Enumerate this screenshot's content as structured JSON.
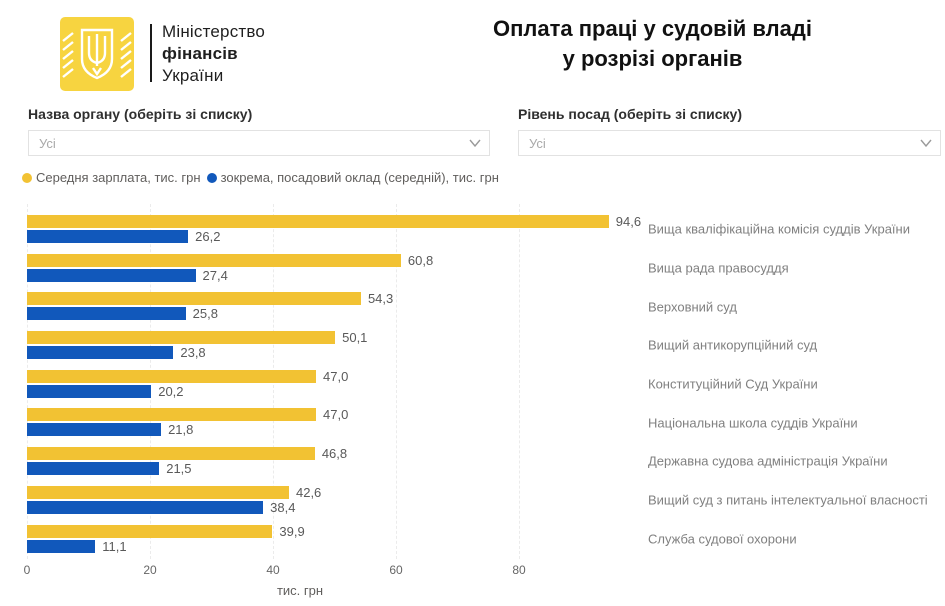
{
  "header": {
    "ministry_lines": [
      "Міністерство",
      "фінансів",
      "України"
    ],
    "title_line1": "Оплата праці у судовій владі",
    "title_line2": "у розрізі органів"
  },
  "filters": [
    {
      "label": "Назва органу (оберіть зі списку)",
      "value": "Усі"
    },
    {
      "label": "Рівень посад (оберіть зі списку)",
      "value": "Усі"
    }
  ],
  "legend": [
    {
      "label": "Середня зарплата, тис. грн",
      "color": "#F2C233"
    },
    {
      "label": "зокрема, посадовий оклад (середній), тис. грн",
      "color": "#1158BB"
    }
  ],
  "colors": {
    "bar_yellow": "#F2C233",
    "bar_blue": "#1158BB",
    "logo_yellow": "#F7D440"
  },
  "chart_data": {
    "type": "bar",
    "orientation": "horizontal",
    "title": "",
    "xlabel": "тис. грн",
    "ylabel": "",
    "xlim": [
      0,
      100
    ],
    "x_ticks": [
      "0",
      "20",
      "40",
      "60",
      "80"
    ],
    "x_tick_values": [
      0,
      20,
      40,
      60,
      80
    ],
    "grid": "dashed-vertical",
    "legend_position": "top-left",
    "categories": [
      "Вища кваліфікаційна комісія суддів України",
      "Вища рада правосуддя",
      "Верховний суд",
      "Вищий антикорупційний суд",
      "Конституційний Суд України",
      "Національна школа суддів України",
      "Державна судова адміністрація України",
      "Вищий суд з питань інтелектуальної власності",
      "Служба судової охорони"
    ],
    "series": [
      {
        "name": "Середня зарплата, тис. грн",
        "color": "#F2C233",
        "values": [
          94.6,
          60.8,
          54.3,
          50.1,
          47.0,
          47.0,
          46.8,
          42.6,
          39.9
        ],
        "labels": [
          "94,6",
          "60,8",
          "54,3",
          "50,1",
          "47,0",
          "47,0",
          "46,8",
          "42,6",
          "39,9"
        ]
      },
      {
        "name": "зокрема, посадовий оклад (середній), тис. грн",
        "color": "#1158BB",
        "values": [
          26.2,
          27.4,
          25.8,
          23.8,
          20.2,
          21.8,
          21.5,
          38.4,
          11.1
        ],
        "labels": [
          "26,2",
          "27,4",
          "25,8",
          "23,8",
          "20,2",
          "21,8",
          "21,5",
          "38,4",
          "11,1"
        ]
      }
    ]
  }
}
